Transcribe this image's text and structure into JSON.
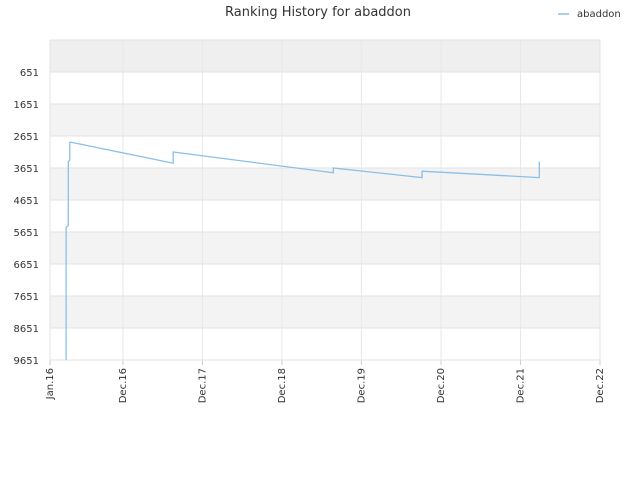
{
  "chart_data": {
    "type": "line",
    "title": "Ranking History for abaddon",
    "xlabel": "",
    "ylabel": "",
    "y_inverted": true,
    "ylim": [
      -349,
      9651
    ],
    "yticks": [
      651,
      1651,
      2651,
      3651,
      4651,
      5651,
      6651,
      7651,
      8651,
      9651
    ],
    "xlim": [
      "2016-01",
      "2022-12"
    ],
    "xticks": [
      {
        "label": "Jan.16",
        "date": "2016-01"
      },
      {
        "label": "Dec.16",
        "date": "2016-12"
      },
      {
        "label": "Dec.17",
        "date": "2017-12"
      },
      {
        "label": "Dec.18",
        "date": "2018-12"
      },
      {
        "label": "Dec.19",
        "date": "2019-12"
      },
      {
        "label": "Dec.20",
        "date": "2020-12"
      },
      {
        "label": "Dec.21",
        "date": "2021-12"
      },
      {
        "label": "Dec.22",
        "date": "2022-12"
      }
    ],
    "grid": true,
    "legend_position": "top-right",
    "series": [
      {
        "name": "abaddon",
        "color": "#8cbfe8",
        "points": [
          {
            "date": "2016-03-15",
            "rank": 9651
          },
          {
            "date": "2016-03-15",
            "rank": 5500
          },
          {
            "date": "2016-03-25",
            "rank": 5450
          },
          {
            "date": "2016-03-25",
            "rank": 3450
          },
          {
            "date": "2016-04-01",
            "rank": 3400
          },
          {
            "date": "2016-04-01",
            "rank": 2850
          },
          {
            "date": "2016-04-10",
            "rank": 2850
          },
          {
            "date": "2017-07-20",
            "rank": 3500
          },
          {
            "date": "2017-07-20",
            "rank": 3150
          },
          {
            "date": "2019-07-25",
            "rank": 3800
          },
          {
            "date": "2019-07-25",
            "rank": 3650
          },
          {
            "date": "2020-09-05",
            "rank": 3950
          },
          {
            "date": "2020-09-05",
            "rank": 3750
          },
          {
            "date": "2022-02-25",
            "rank": 3950
          },
          {
            "date": "2022-02-25",
            "rank": 3450
          }
        ]
      }
    ]
  }
}
